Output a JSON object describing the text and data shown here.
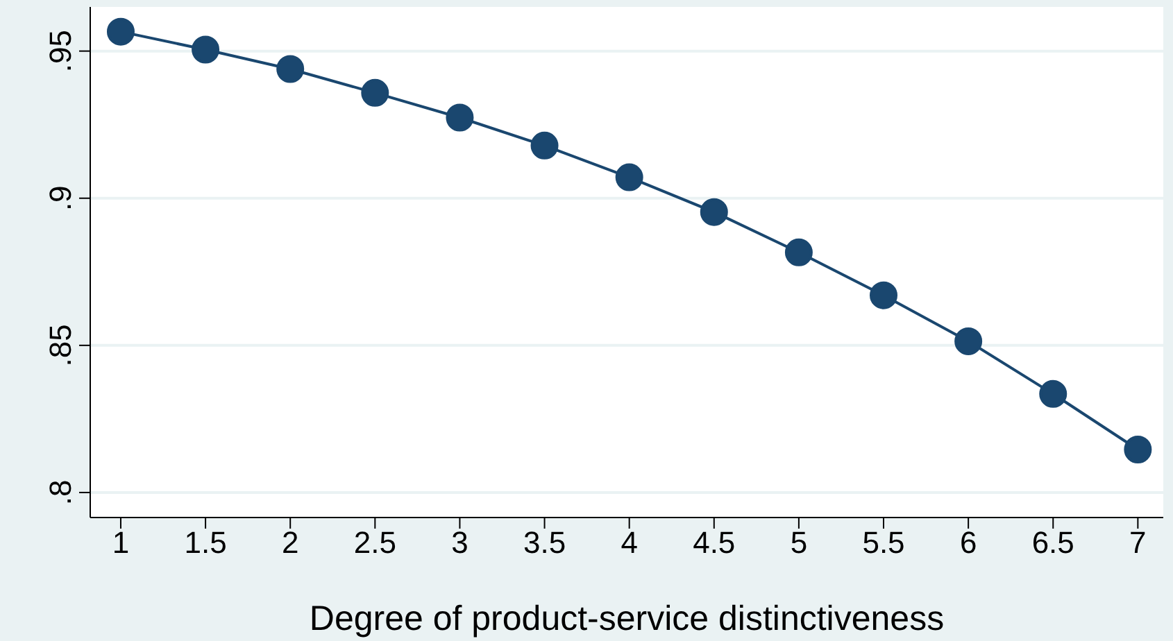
{
  "chart_data": {
    "type": "line",
    "xlabel": "Degree of product-service distinctiveness",
    "x": [
      1,
      1.5,
      2,
      2.5,
      3,
      3.5,
      4,
      4.5,
      5,
      5.5,
      6,
      6.5,
      7
    ],
    "series": [
      {
        "color": "#1a476f",
        "values": [
          0.9566,
          0.9505,
          0.9439,
          0.9358,
          0.9274,
          0.9179,
          0.9071,
          0.8953,
          0.8816,
          0.867,
          0.8514,
          0.8335,
          0.8146
        ]
      }
    ],
    "xlim": [
      0.82,
      7.15
    ],
    "xticks": [
      1,
      1.5,
      2,
      2.5,
      3,
      3.5,
      4,
      4.5,
      5,
      5.5,
      6,
      6.5,
      7
    ],
    "ylim": [
      0.7915,
      0.965
    ],
    "yticks": [
      {
        "value": 0.8,
        "label": ".8"
      },
      {
        "value": 0.85,
        "label": ".85"
      },
      {
        "value": 0.9,
        "label": ".9"
      },
      {
        "value": 0.95,
        "label": ".95"
      }
    ],
    "grid": "y",
    "marker": "circle",
    "line_style": "solid",
    "legend": false
  }
}
